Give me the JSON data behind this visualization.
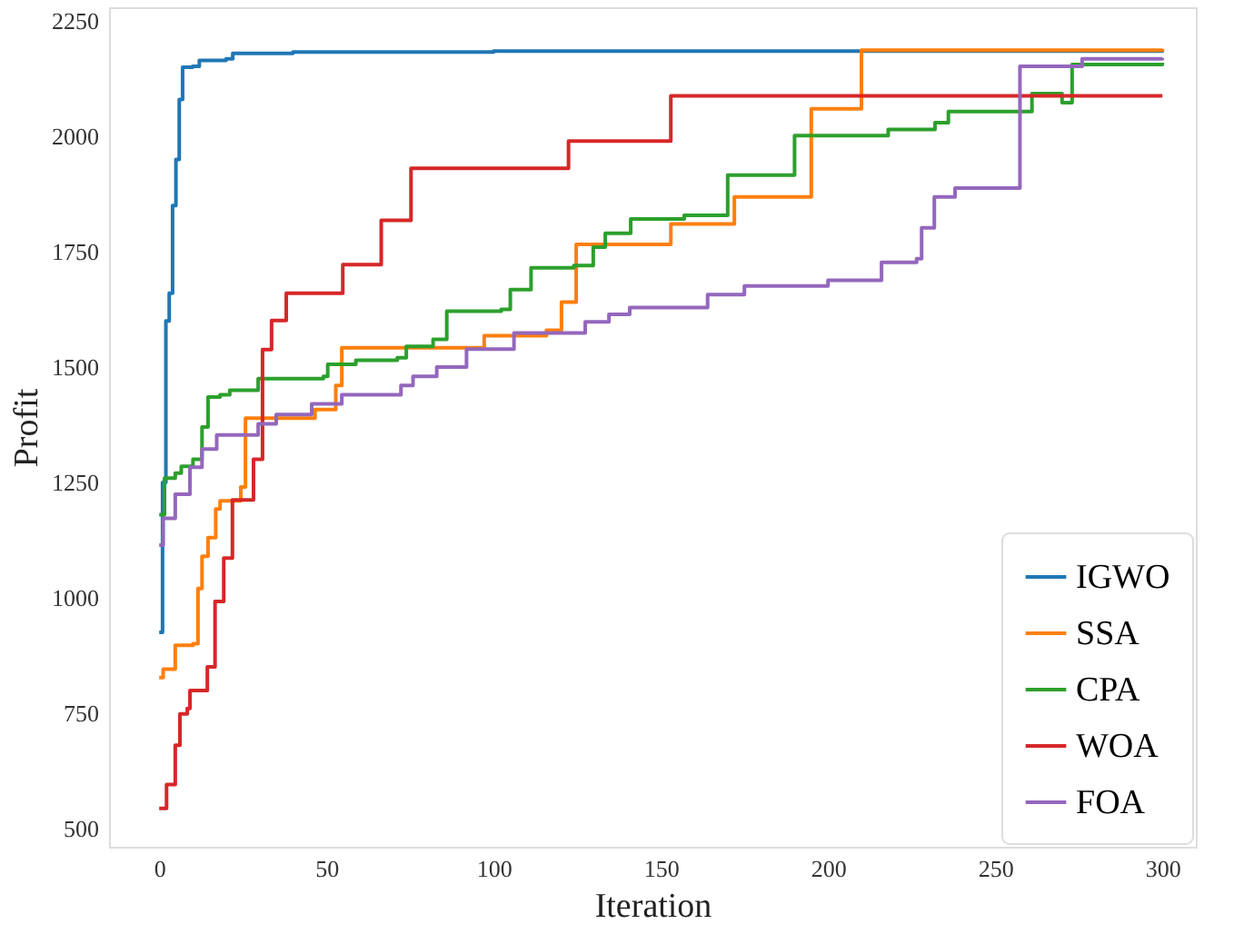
{
  "chart_data": {
    "type": "step",
    "xlabel": "Iteration",
    "ylabel": "Profit",
    "xlim": [
      -15,
      310
    ],
    "ylim": [
      460,
      2280
    ],
    "xticks": [
      0,
      50,
      100,
      150,
      200,
      250,
      300
    ],
    "yticks": [
      500,
      750,
      1000,
      1250,
      1500,
      1750,
      2000,
      2250
    ],
    "grid": false,
    "legend": "bottom right",
    "line_style": "solid",
    "marker": "none",
    "series": [
      {
        "name": "IGWO",
        "color": "#1f77b4",
        "x": [
          0,
          1,
          2,
          3,
          4,
          5,
          6,
          7,
          10,
          12,
          20,
          22,
          40,
          100,
          300
        ],
        "values": [
          925,
          1250,
          1600,
          1660,
          1850,
          1950,
          2080,
          2150,
          2152,
          2165,
          2168,
          2180,
          2183,
          2185,
          2187
        ]
      },
      {
        "name": "SSA",
        "color": "#ff7f0e",
        "x": [
          0,
          1.2,
          4.8,
          10.1,
          11.6,
          12.8,
          14.6,
          16.9,
          18.2,
          24.4,
          25.8,
          46.6,
          52.8,
          54.6,
          97.2,
          115.8,
          120.3,
          124.7,
          153,
          172,
          195,
          210,
          300
        ],
        "values": [
          827,
          845,
          897,
          900,
          1020,
          1090,
          1130,
          1192,
          1210,
          1240,
          1389,
          1408,
          1460,
          1542,
          1568,
          1580,
          1641,
          1766,
          1810,
          1869,
          2060,
          2187,
          2190
        ]
      },
      {
        "name": "CPA",
        "color": "#2ca02c",
        "x": [
          0,
          1.6,
          4.8,
          6.6,
          10.1,
          12.8,
          14.6,
          18.2,
          21.1,
          29.6,
          49.1,
          50.4,
          58.8,
          71.2,
          73.9,
          81.9,
          86,
          102.3,
          105,
          111.2,
          124,
          129.8,
          133.4,
          141,
          157,
          170,
          190,
          218,
          232,
          236,
          261,
          270,
          273,
          300
        ],
        "values": [
          1180,
          1259,
          1270,
          1285,
          1300,
          1370,
          1435,
          1440,
          1450,
          1475,
          1480,
          1506,
          1515,
          1520,
          1545,
          1560,
          1621,
          1625,
          1668,
          1715,
          1720,
          1760,
          1790,
          1821,
          1829,
          1916,
          2002,
          2015,
          2030,
          2054,
          2093,
          2073,
          2156,
          2160
        ]
      },
      {
        "name": "WOA",
        "color": "#d62728",
        "x": [
          0,
          2.2,
          4.8,
          6.2,
          8.4,
          9.2,
          14.4,
          16.7,
          19.3,
          21.9,
          28.2,
          30.9,
          33.6,
          38,
          54.9,
          66.4,
          75.3,
          122.4,
          153,
          300
        ],
        "values": [
          543,
          595,
          680,
          748,
          760,
          799,
          850,
          992,
          1086,
          1212,
          1300,
          1538,
          1601,
          1660,
          1722,
          1818,
          1931,
          1990,
          2088,
          2088
        ]
      },
      {
        "name": "FOA",
        "color": "#9467bd",
        "x": [
          0,
          1.2,
          4.8,
          9.2,
          12.8,
          17.2,
          29.6,
          35,
          45.6,
          54.6,
          72.3,
          75.9,
          83,
          91.9,
          106.1,
          127.4,
          134.5,
          140.7,
          164,
          175,
          200,
          216,
          226.5,
          228,
          231.8,
          238,
          257.4,
          276,
          300
        ],
        "values": [
          1114,
          1172,
          1224,
          1283,
          1322,
          1353,
          1377,
          1397,
          1420,
          1440,
          1460,
          1480,
          1500,
          1539,
          1574,
          1598,
          1614,
          1629,
          1657,
          1676,
          1688,
          1727,
          1735,
          1802,
          1869,
          1888,
          2152,
          2168,
          2170
        ]
      }
    ]
  }
}
